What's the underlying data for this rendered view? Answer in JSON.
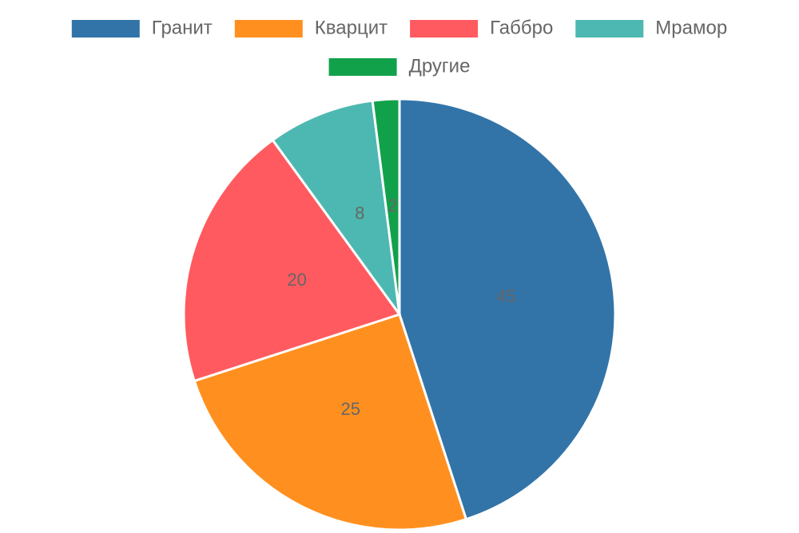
{
  "chart_data": {
    "type": "pie",
    "categories": [
      "Гранит",
      "Кварцит",
      "Габбро",
      "Мрамор",
      "Другие"
    ],
    "values": [
      45,
      25,
      20,
      8,
      2
    ],
    "colors": [
      "#3274a8",
      "#ff9020",
      "#ff5a5f",
      "#4db8b1",
      "#12a14b"
    ],
    "legend": "top"
  }
}
